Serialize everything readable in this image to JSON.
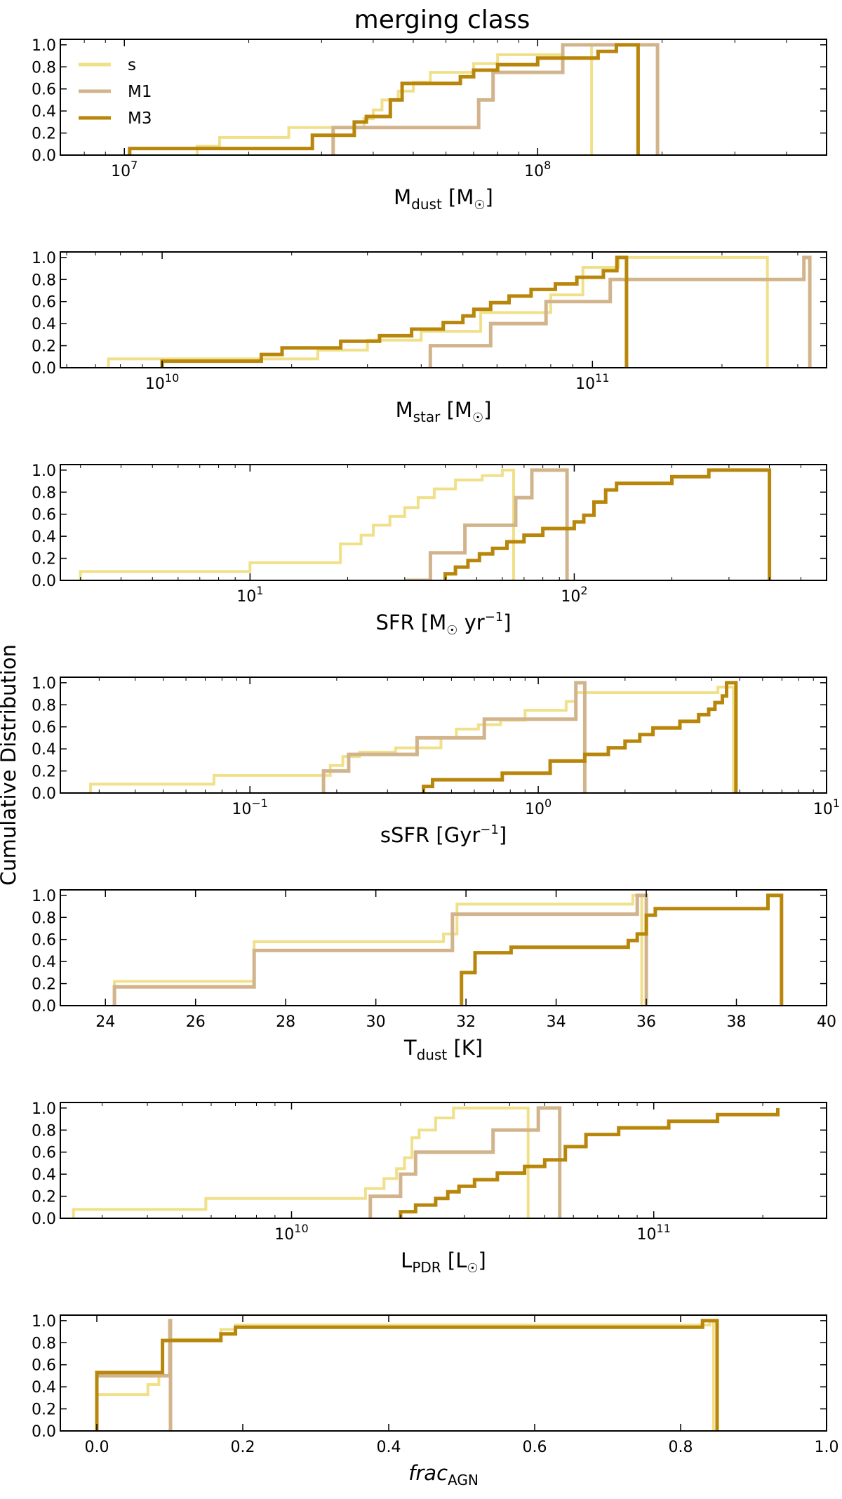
{
  "figure": {
    "title": "merging class",
    "ylabel": "Cumulative Distribution"
  },
  "legend": {
    "placement": "upper-left",
    "entries": [
      {
        "label": "s",
        "color": "#f0e08a"
      },
      {
        "label": "M1",
        "color": "#d2b48c"
      },
      {
        "label": "M3",
        "color": "#b8860b"
      }
    ]
  },
  "chart_data": [
    {
      "type": "line",
      "step": "post",
      "xscale": "log",
      "xlim": [
        7000000,
        500000000
      ],
      "ylim": [
        0,
        1.05
      ],
      "xticks": [
        10000000,
        100000000
      ],
      "xticklabels": [
        {
          "base": "10",
          "exp": "7"
        },
        {
          "base": "10",
          "exp": "8"
        }
      ],
      "yticklabels": [
        "0.0",
        "0.2",
        "0.4",
        "0.6",
        "0.8",
        "1.0"
      ],
      "xlabel": {
        "main": "M",
        "sub": "dust",
        "rest": " [M",
        "sun": "☉",
        "tail": "]"
      },
      "series": [
        {
          "name": "s",
          "color": "#f0e08a",
          "width": 4,
          "x": [
            15000000,
            17000000,
            25000000,
            33000000,
            38000000,
            40000000,
            42000000,
            46000000,
            50000000,
            55000000,
            70000000,
            80000000,
            90000000,
            115000000,
            135000000
          ],
          "y": [
            0.08,
            0.16,
            0.25,
            0.25,
            0.33,
            0.41,
            0.5,
            0.58,
            0.66,
            0.75,
            0.83,
            0.91,
            0.91,
            1.0,
            0.0
          ]
        },
        {
          "name": "M1",
          "color": "#d2b48c",
          "width": 5,
          "x": [
            32000000,
            72000000,
            78000000,
            115000000,
            195000000
          ],
          "y": [
            0.25,
            0.5,
            0.75,
            1.0,
            0.0
          ]
        },
        {
          "name": "M3",
          "color": "#b8860b",
          "width": 5,
          "x": [
            10300000,
            28500000,
            36000000,
            38500000,
            44000000,
            47000000,
            55000000,
            65000000,
            70000000,
            80000000,
            100000000,
            140000000,
            155000000,
            175000000
          ],
          "y": [
            0.06,
            0.18,
            0.3,
            0.35,
            0.5,
            0.65,
            0.65,
            0.71,
            0.77,
            0.82,
            0.88,
            0.94,
            1.0,
            0.0
          ]
        }
      ]
    },
    {
      "type": "line",
      "step": "post",
      "xscale": "log",
      "xlim": [
        5800000000,
        350000000000
      ],
      "ylim": [
        0,
        1.05
      ],
      "xticks": [
        10000000000,
        100000000000
      ],
      "xticklabels": [
        {
          "base": "10",
          "exp": "10"
        },
        {
          "base": "10",
          "exp": "11"
        }
      ],
      "yticklabels": [
        "0.0",
        "0.2",
        "0.4",
        "0.6",
        "0.8",
        "1.0"
      ],
      "xlabel": {
        "main": "M",
        "sub": "star",
        "rest": " [M",
        "sun": "☉",
        "tail": "]"
      },
      "series": [
        {
          "name": "s",
          "color": "#f0e08a",
          "width": 4,
          "x": [
            7500000000,
            23000000000,
            30000000000,
            40000000000,
            55000000000,
            80000000000,
            95000000000,
            115000000000,
            255000000000
          ],
          "y": [
            0.08,
            0.16,
            0.25,
            0.33,
            0.5,
            0.66,
            0.91,
            1.0,
            0.0
          ]
        },
        {
          "name": "M1",
          "color": "#d2b48c",
          "width": 5,
          "x": [
            42000000000,
            58000000000,
            78000000000,
            110000000000,
            145000000000,
            310000000000,
            320000000000
          ],
          "y": [
            0.2,
            0.4,
            0.6,
            0.8,
            0.8,
            1.0,
            0.0
          ]
        },
        {
          "name": "M3",
          "color": "#b8860b",
          "width": 5,
          "x": [
            10000000000,
            17000000000,
            19000000000,
            26000000000,
            32000000000,
            38000000000,
            45000000000,
            50000000000,
            53000000000,
            58000000000,
            64000000000,
            72000000000,
            82000000000,
            92000000000,
            106000000000,
            114000000000,
            120000000000
          ],
          "y": [
            0.06,
            0.12,
            0.18,
            0.24,
            0.29,
            0.35,
            0.41,
            0.47,
            0.53,
            0.59,
            0.65,
            0.71,
            0.76,
            0.82,
            0.88,
            1.0,
            0.0
          ]
        }
      ]
    },
    {
      "type": "line",
      "step": "post",
      "xscale": "log",
      "xlim": [
        2.6,
        600
      ],
      "ylim": [
        0,
        1.05
      ],
      "xticks": [
        10,
        100
      ],
      "xticklabels": [
        {
          "base": "10",
          "exp": "1"
        },
        {
          "base": "10",
          "exp": "2"
        }
      ],
      "yticklabels": [
        "0.0",
        "0.2",
        "0.4",
        "0.6",
        "0.8",
        "1.0"
      ],
      "xlabel": {
        "main": "SFR [M",
        "sub": "",
        "rest": "",
        "sun": "☉",
        "tail": " yr",
        "sup": "−1",
        "end": "]"
      },
      "series": [
        {
          "name": "s",
          "color": "#f0e08a",
          "width": 4,
          "x": [
            3.0,
            10.0,
            19.0,
            22.0,
            24.0,
            27.0,
            30.0,
            33.0,
            37.0,
            43.0,
            52.0,
            60.0,
            65.0
          ],
          "y": [
            0.08,
            0.16,
            0.33,
            0.41,
            0.5,
            0.58,
            0.66,
            0.75,
            0.83,
            0.91,
            0.95,
            1.0,
            0.0
          ]
        },
        {
          "name": "M1",
          "color": "#d2b48c",
          "width": 5,
          "x": [
            30.0,
            36.0,
            46.0,
            66.0,
            74.0,
            95.0
          ],
          "y": [
            0.0,
            0.25,
            0.5,
            0.75,
            1.0,
            0.0
          ]
        },
        {
          "name": "M3",
          "color": "#b8860b",
          "width": 5,
          "x": [
            40.0,
            43.0,
            47.0,
            51.0,
            56.0,
            62.0,
            70.0,
            80.0,
            100.0,
            107.0,
            115.0,
            125.0,
            135.0,
            200.0,
            260.0,
            400.0
          ],
          "y": [
            0.06,
            0.12,
            0.18,
            0.24,
            0.29,
            0.35,
            0.41,
            0.47,
            0.53,
            0.59,
            0.71,
            0.82,
            0.88,
            0.94,
            1.0,
            0.0
          ]
        }
      ]
    },
    {
      "type": "line",
      "step": "post",
      "xscale": "log",
      "xlim": [
        0.022,
        10
      ],
      "ylim": [
        0,
        1.05
      ],
      "xticks": [
        0.1,
        1,
        10
      ],
      "xticklabels": [
        {
          "base": "10",
          "exp": "−1"
        },
        {
          "base": "10",
          "exp": "0"
        },
        {
          "base": "10",
          "exp": "1"
        }
      ],
      "yticklabels": [
        "0.0",
        "0.2",
        "0.4",
        "0.6",
        "0.8",
        "1.0"
      ],
      "xlabel": {
        "main": "sSFR [Gyr",
        "sub": "",
        "rest": "",
        "sun": "",
        "tail": "",
        "sup": "−1",
        "end": "]"
      },
      "series": [
        {
          "name": "s",
          "color": "#f0e08a",
          "width": 4,
          "x": [
            0.028,
            0.075,
            0.19,
            0.21,
            0.24,
            0.32,
            0.46,
            0.52,
            0.62,
            0.74,
            0.9,
            1.25,
            1.35,
            4.2,
            4.75
          ],
          "y": [
            0.08,
            0.16,
            0.25,
            0.33,
            0.37,
            0.41,
            0.5,
            0.58,
            0.62,
            0.66,
            0.75,
            0.83,
            0.91,
            0.96,
            0.0
          ]
        },
        {
          "name": "M1",
          "color": "#d2b48c",
          "width": 5,
          "x": [
            0.18,
            0.22,
            0.38,
            0.65,
            1.35,
            1.45
          ],
          "y": [
            0.2,
            0.35,
            0.5,
            0.67,
            1.0,
            0.0
          ]
        },
        {
          "name": "M3",
          "color": "#b8860b",
          "width": 5,
          "x": [
            0.4,
            0.43,
            0.75,
            1.1,
            1.45,
            1.75,
            2.0,
            2.25,
            2.5,
            3.1,
            3.6,
            3.9,
            4.1,
            4.35,
            4.5,
            4.85
          ],
          "y": [
            0.06,
            0.12,
            0.18,
            0.29,
            0.35,
            0.41,
            0.47,
            0.53,
            0.59,
            0.65,
            0.71,
            0.76,
            0.82,
            0.88,
            1.0,
            0.0
          ]
        }
      ]
    },
    {
      "type": "line",
      "step": "post",
      "xscale": "linear",
      "xlim": [
        23,
        40
      ],
      "ylim": [
        0,
        1.05
      ],
      "xticks": [
        24,
        26,
        28,
        30,
        32,
        34,
        36,
        38,
        40
      ],
      "xticklabels": [
        "24",
        "26",
        "28",
        "30",
        "32",
        "34",
        "36",
        "38",
        "40"
      ],
      "yticklabels": [
        "0.0",
        "0.2",
        "0.4",
        "0.6",
        "0.8",
        "1.0"
      ],
      "xlabel": {
        "main": "T",
        "sub": "dust",
        "rest": " [K]",
        "sun": "",
        "tail": ""
      },
      "series": [
        {
          "name": "s",
          "color": "#f0e08a",
          "width": 4,
          "x": [
            24.2,
            27.3,
            31.5,
            31.8,
            35.7,
            35.9
          ],
          "y": [
            0.22,
            0.58,
            0.65,
            0.92,
            1.0,
            0.0
          ]
        },
        {
          "name": "M1",
          "color": "#d2b48c",
          "width": 5,
          "x": [
            24.2,
            27.3,
            31.7,
            35.8,
            36.0
          ],
          "y": [
            0.17,
            0.5,
            0.83,
            1.0,
            0.0
          ]
        },
        {
          "name": "M3",
          "color": "#b8860b",
          "width": 5,
          "x": [
            31.9,
            32.2,
            33.0,
            35.6,
            35.8,
            36.0,
            36.2,
            38.7,
            39.0
          ],
          "y": [
            0.3,
            0.48,
            0.53,
            0.59,
            0.65,
            0.82,
            0.88,
            1.0,
            0.0
          ]
        }
      ]
    },
    {
      "type": "line",
      "step": "post",
      "xscale": "log",
      "xlim": [
        2300000000,
        300000000000
      ],
      "ylim": [
        0,
        1.05
      ],
      "xticks": [
        10000000000,
        100000000000
      ],
      "xticklabels": [
        {
          "base": "10",
          "exp": "10"
        },
        {
          "base": "10",
          "exp": "11"
        }
      ],
      "yticklabels": [
        "0.0",
        "0.2",
        "0.4",
        "0.6",
        "0.8",
        "1.0"
      ],
      "xlabel": {
        "main": "L",
        "sub": "PDR",
        "rest": " [L",
        "sun": "☉",
        "tail": "]"
      },
      "series": [
        {
          "name": "s",
          "color": "#f0e08a",
          "width": 4,
          "x": [
            2500000000,
            5800000000,
            16000000000,
            18000000000,
            19500000000,
            20500000000,
            21500000000,
            22500000000,
            25000000000,
            28000000000,
            30000000000,
            45000000000
          ],
          "y": [
            0.08,
            0.18,
            0.27,
            0.36,
            0.45,
            0.55,
            0.73,
            0.8,
            0.91,
            1.0,
            1.0,
            0.0
          ]
        },
        {
          "name": "M1",
          "color": "#d2b48c",
          "width": 5,
          "x": [
            16500000000,
            20000000000,
            22000000000,
            36000000000,
            48000000000,
            55000000000
          ],
          "y": [
            0.2,
            0.4,
            0.6,
            0.8,
            1.0,
            0.0
          ]
        },
        {
          "name": "M3",
          "color": "#b8860b",
          "width": 5,
          "x": [
            20000000000,
            22000000000,
            25000000000,
            27000000000,
            29000000000,
            32000000000,
            37000000000,
            44000000000,
            50000000000,
            57000000000,
            65000000000,
            80000000000,
            110000000000,
            150000000000,
            220000000000
          ],
          "y": [
            0.06,
            0.12,
            0.18,
            0.24,
            0.29,
            0.35,
            0.41,
            0.47,
            0.53,
            0.65,
            0.76,
            0.82,
            0.88,
            0.94,
            1.0
          ]
        }
      ]
    },
    {
      "type": "line",
      "step": "post",
      "xscale": "linear",
      "xlim": [
        -0.05,
        1.0
      ],
      "ylim": [
        0,
        1.05
      ],
      "xticks": [
        0.0,
        0.2,
        0.4,
        0.6,
        0.8,
        1.0
      ],
      "xticklabels": [
        "0.0",
        "0.2",
        "0.4",
        "0.6",
        "0.8",
        "1.0"
      ],
      "yticklabels": [
        "0.0",
        "0.2",
        "0.4",
        "0.6",
        "0.8",
        "1.0"
      ],
      "xlabel": {
        "main": "frac",
        "sub": "AGN",
        "rest": "",
        "sun": "",
        "tail": "",
        "italic": true
      },
      "series": [
        {
          "name": "s",
          "color": "#f0e08a",
          "width": 4,
          "x": [
            0.0,
            0.07,
            0.085,
            0.1,
            0.17,
            0.19,
            0.84,
            0.845
          ],
          "y": [
            0.33,
            0.42,
            0.5,
            0.83,
            0.92,
            0.96,
            1.0,
            0.0
          ]
        },
        {
          "name": "M1",
          "color": "#d2b48c",
          "width": 5,
          "x": [
            0.0,
            0.1,
            0.101
          ],
          "y": [
            0.5,
            1.0,
            0.0
          ]
        },
        {
          "name": "M3",
          "color": "#b8860b",
          "width": 5,
          "x": [
            0.0,
            0.09,
            0.17,
            0.19,
            0.83,
            0.85
          ],
          "y": [
            0.53,
            0.82,
            0.88,
            0.94,
            1.0,
            0.0
          ]
        }
      ]
    }
  ]
}
